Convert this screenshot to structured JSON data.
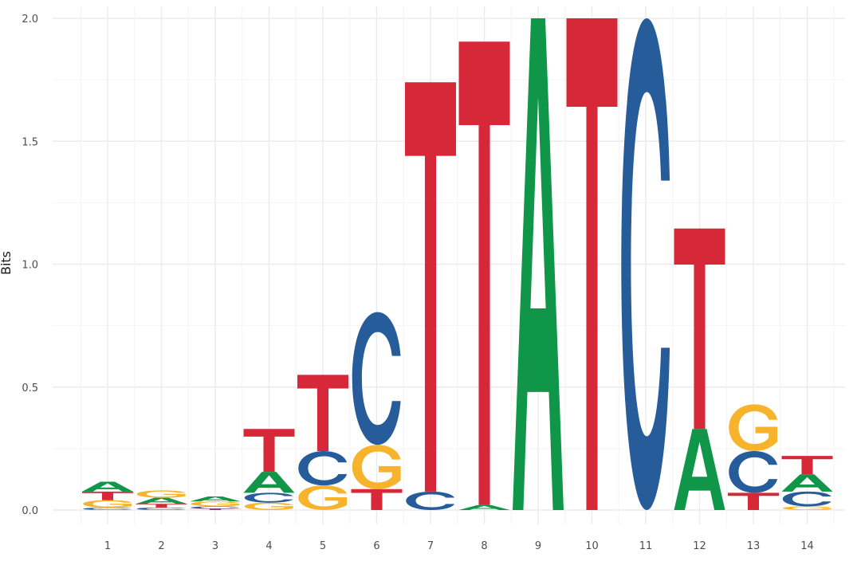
{
  "chart_data": {
    "type": "sequence-logo",
    "title": "",
    "xlabel": "",
    "ylabel": "Bits",
    "ylim": [
      0,
      2
    ],
    "y_ticks": [
      "0.0",
      "0.5",
      "1.0",
      "1.5",
      "2.0"
    ],
    "x_ticks": [
      "1",
      "2",
      "3",
      "4",
      "5",
      "6",
      "7",
      "8",
      "9",
      "10",
      "11",
      "12",
      "13",
      "14"
    ],
    "grid": true,
    "legend": "none",
    "colors": {
      "A": "#109648",
      "C": "#255c99",
      "G": "#f7b32b",
      "T": "#d62839"
    },
    "positions": [
      {
        "position": 1,
        "stack": [
          {
            "letter": "C",
            "bits": 0.01
          },
          {
            "letter": "G",
            "bits": 0.03
          },
          {
            "letter": "T",
            "bits": 0.035
          },
          {
            "letter": "A",
            "bits": 0.04
          }
        ]
      },
      {
        "position": 2,
        "stack": [
          {
            "letter": "C",
            "bits": 0.01
          },
          {
            "letter": "T",
            "bits": 0.015
          },
          {
            "letter": "A",
            "bits": 0.025
          },
          {
            "letter": "G",
            "bits": 0.03
          }
        ]
      },
      {
        "position": 3,
        "stack": [
          {
            "letter": "T",
            "bits": 0.005
          },
          {
            "letter": "C",
            "bits": 0.01
          },
          {
            "letter": "G",
            "bits": 0.02
          },
          {
            "letter": "A",
            "bits": 0.02
          }
        ]
      },
      {
        "position": 4,
        "stack": [
          {
            "letter": "G",
            "bits": 0.03
          },
          {
            "letter": "C",
            "bits": 0.04
          },
          {
            "letter": "A",
            "bits": 0.085
          },
          {
            "letter": "T",
            "bits": 0.175
          }
        ]
      },
      {
        "position": 5,
        "stack": [
          {
            "letter": "G",
            "bits": 0.1
          },
          {
            "letter": "C",
            "bits": 0.14
          },
          {
            "letter": "T",
            "bits": 0.31
          }
        ]
      },
      {
        "position": 6,
        "stack": [
          {
            "letter": "T",
            "bits": 0.085
          },
          {
            "letter": "G",
            "bits": 0.18
          },
          {
            "letter": "C",
            "bits": 0.54
          }
        ]
      },
      {
        "position": 7,
        "stack": [
          {
            "letter": "C",
            "bits": 0.075
          },
          {
            "letter": "T",
            "bits": 1.665
          }
        ]
      },
      {
        "position": 8,
        "stack": [
          {
            "letter": "A",
            "bits": 0.02
          },
          {
            "letter": "T",
            "bits": 1.885
          }
        ]
      },
      {
        "position": 9,
        "stack": [
          {
            "letter": "A",
            "bits": 2.0
          }
        ]
      },
      {
        "position": 10,
        "stack": [
          {
            "letter": "T",
            "bits": 2.0
          }
        ]
      },
      {
        "position": 11,
        "stack": [
          {
            "letter": "C",
            "bits": 2.0
          }
        ]
      },
      {
        "position": 12,
        "stack": [
          {
            "letter": "A",
            "bits": 0.33
          },
          {
            "letter": "T",
            "bits": 0.815
          }
        ]
      },
      {
        "position": 13,
        "stack": [
          {
            "letter": "T",
            "bits": 0.07
          },
          {
            "letter": "C",
            "bits": 0.17
          },
          {
            "letter": "G",
            "bits": 0.19
          }
        ]
      },
      {
        "position": 14,
        "stack": [
          {
            "letter": "G",
            "bits": 0.015
          },
          {
            "letter": "C",
            "bits": 0.06
          },
          {
            "letter": "A",
            "bits": 0.07
          },
          {
            "letter": "T",
            "bits": 0.075
          }
        ]
      }
    ]
  }
}
